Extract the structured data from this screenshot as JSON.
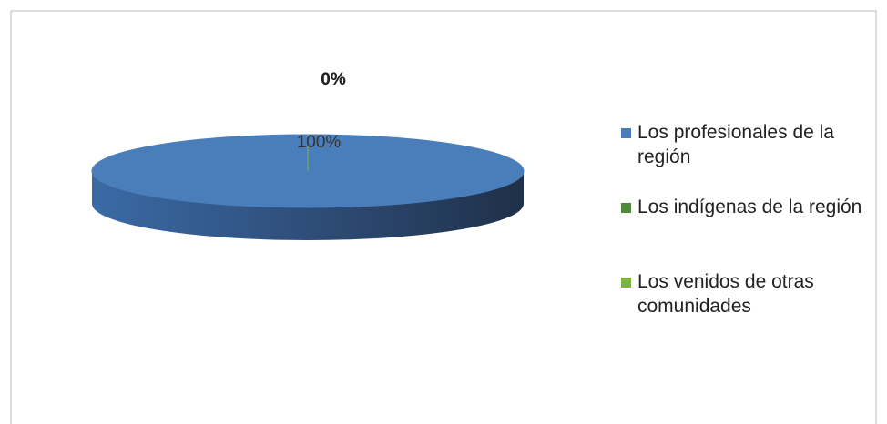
{
  "chart_data": {
    "type": "pie3d",
    "categories": [
      "Los profesionales de la región",
      "Los indígenas de la región",
      "Los venidos de otras comunidades"
    ],
    "values": [
      100,
      0,
      0
    ],
    "value_labels": [
      "100%",
      "0%",
      "0%"
    ],
    "colors": [
      "#4a7ebb",
      "#4f8a3c",
      "#7cb342"
    ],
    "legend": "right"
  }
}
